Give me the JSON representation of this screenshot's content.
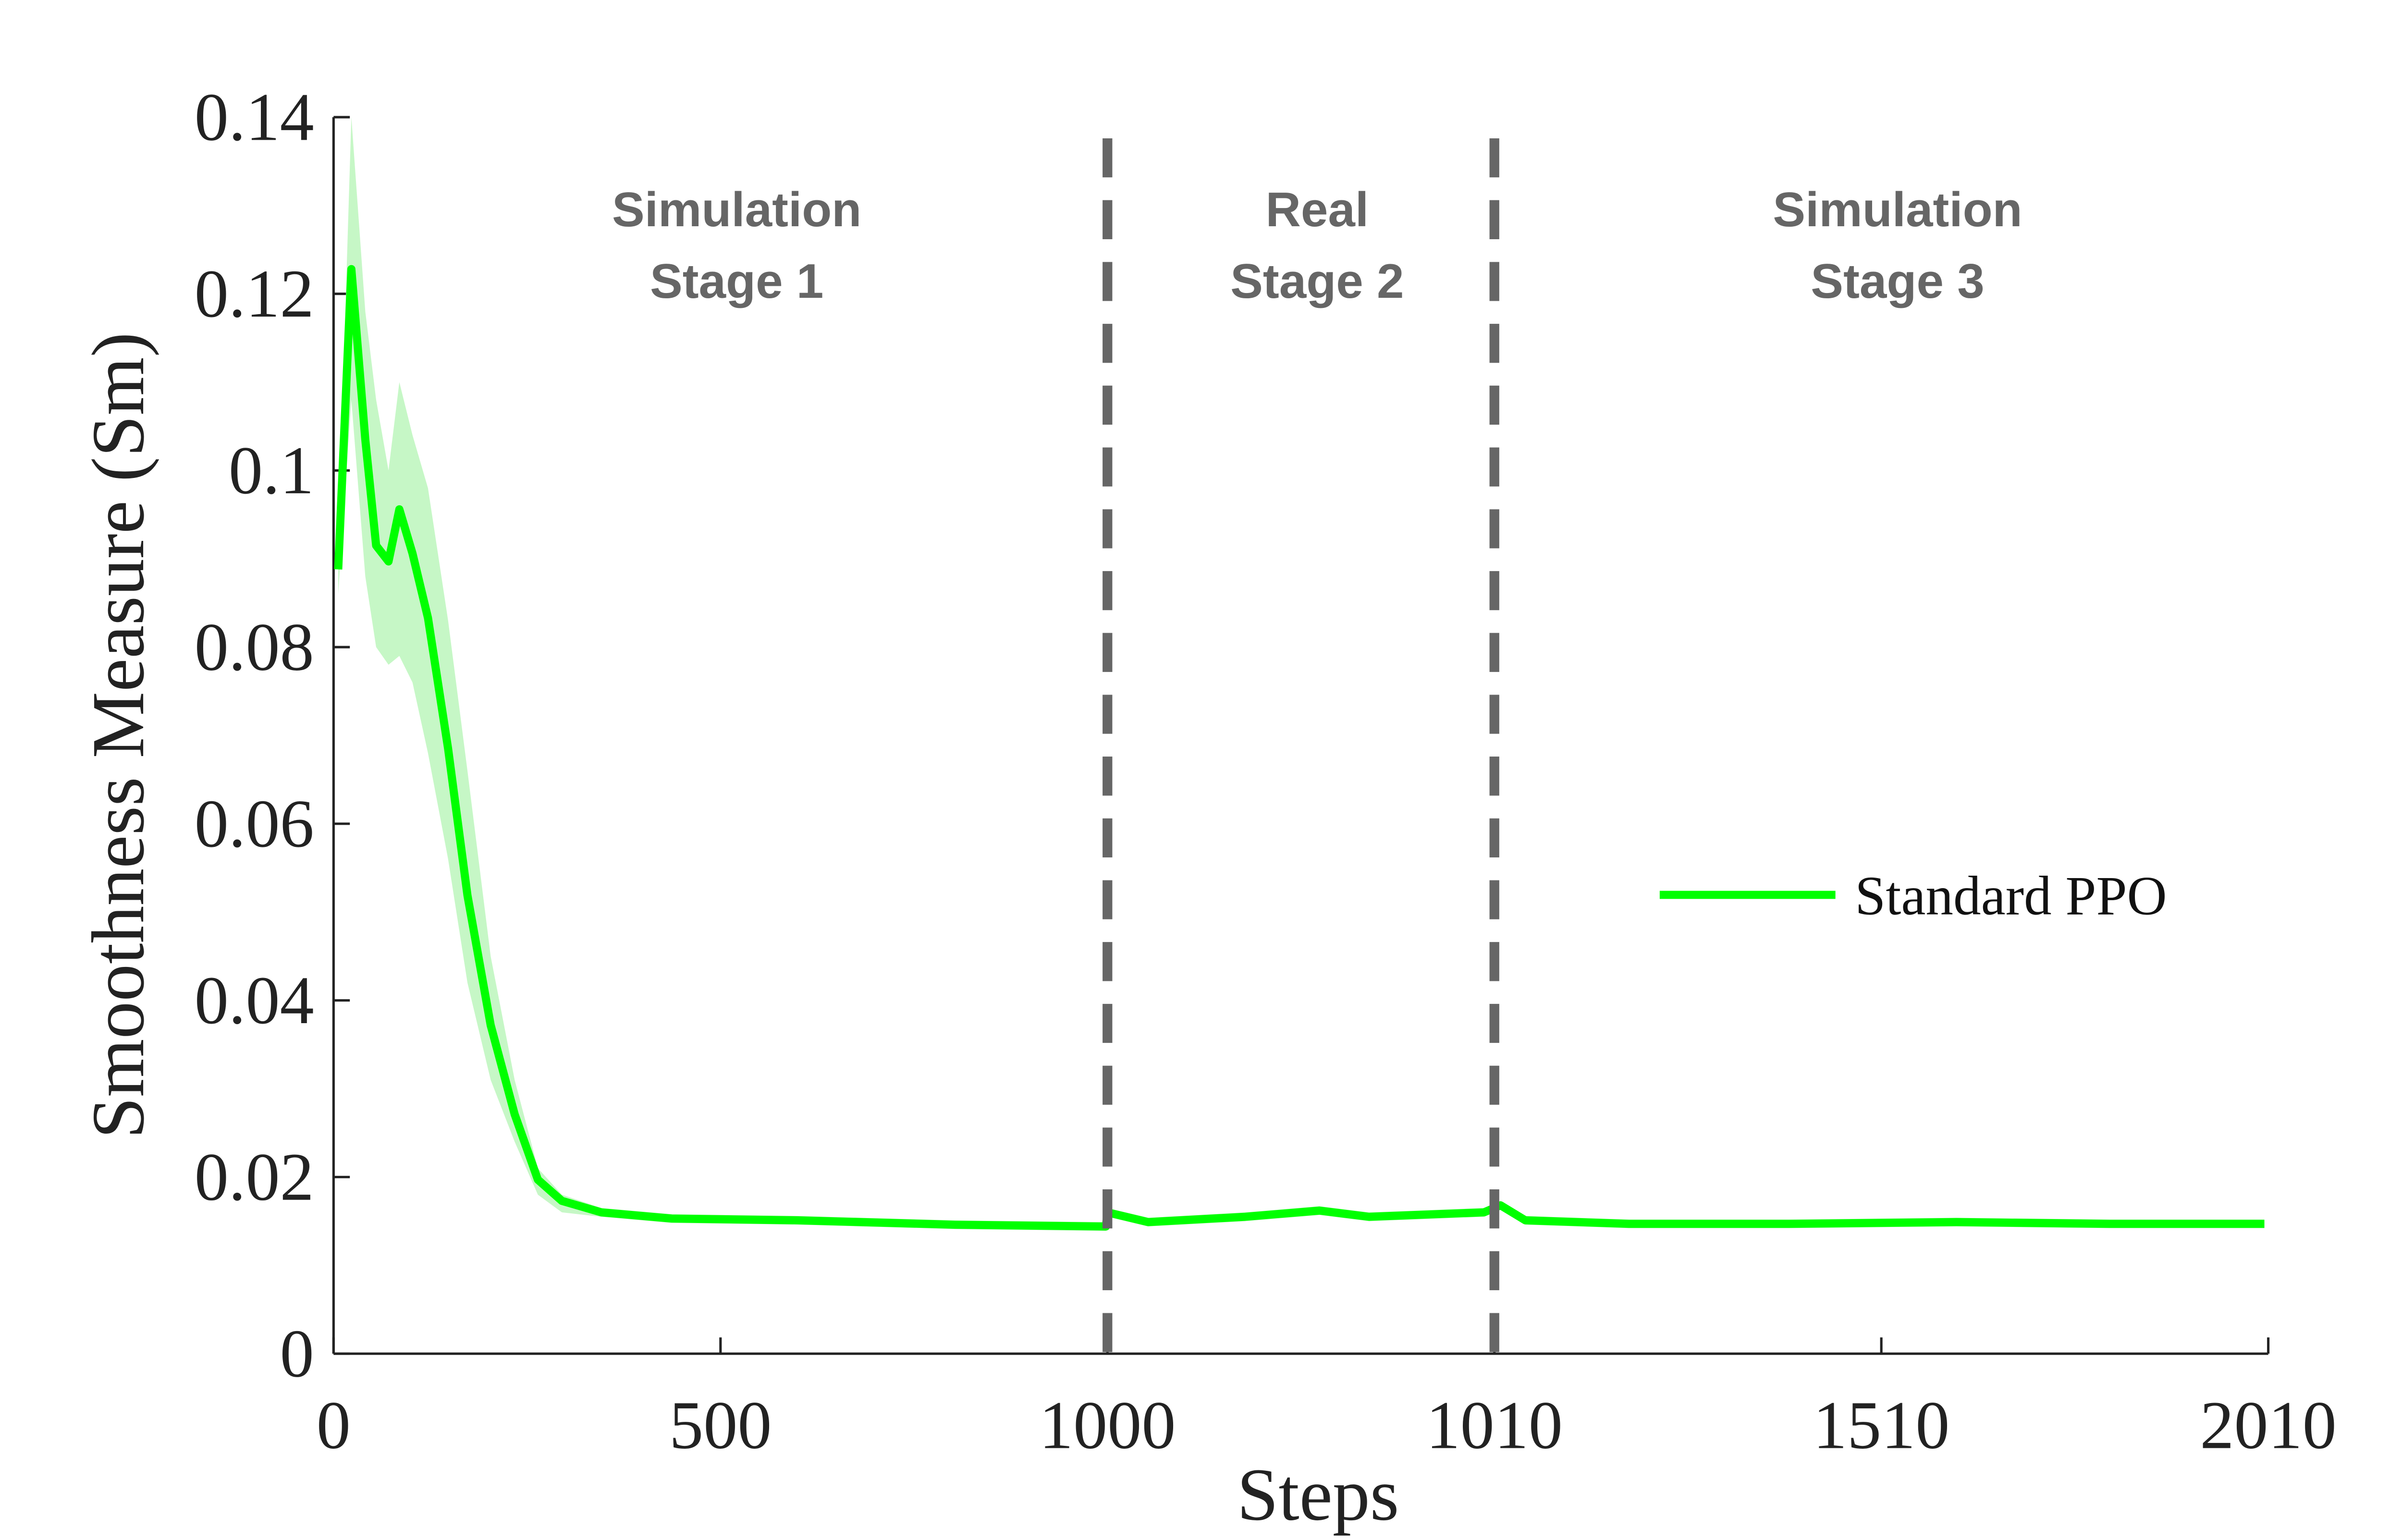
{
  "chart_data": {
    "type": "line",
    "xlabel": "Steps",
    "ylabel": "Smoothness Measure (Sm)",
    "xlim": [
      0,
      2010
    ],
    "ylim": [
      0,
      0.14
    ],
    "xticks": [
      0,
      500,
      1000,
      1010,
      1510,
      2010
    ],
    "yticks": [
      0,
      0.02,
      0.04,
      0.06,
      0.08,
      0.1,
      0.12,
      0.14
    ],
    "legend": "right",
    "dividers": [
      1000,
      1010
    ],
    "annotations": [
      [
        "Simulation",
        "Stage 1"
      ],
      [
        "Real",
        "Stage 2"
      ],
      [
        "Simulation",
        "Stage 3"
      ]
    ],
    "x": [
      6,
      23,
      41,
      55,
      71,
      85,
      102,
      122,
      148,
      173,
      203,
      234,
      264,
      295,
      346,
      437,
      600,
      803,
      998,
      1000,
      1001.05,
      1003.56,
      1005.48,
      1006.76,
      1009.73,
      1018,
      1050,
      1184,
      1391,
      1607,
      1805,
      2005
    ],
    "series": [
      {
        "name": "Standard PPO",
        "color": "#00ff00",
        "band_color": "#b8f5b8",
        "values": [
          0.0888,
          0.1228,
          0.1035,
          0.0915,
          0.0897,
          0.0956,
          0.0906,
          0.0833,
          0.0685,
          0.0519,
          0.0372,
          0.0271,
          0.0197,
          0.0173,
          0.016,
          0.0153,
          0.0151,
          0.0146,
          0.0144,
          0.016,
          0.0149,
          0.0155,
          0.0162,
          0.0155,
          0.016,
          0.0168,
          0.0151,
          0.0147,
          0.0147,
          0.0149,
          0.0147,
          0.0147
        ],
        "upper": [
          0.092,
          0.14,
          0.118,
          0.108,
          0.1,
          0.11,
          0.104,
          0.098,
          0.083,
          0.066,
          0.045,
          0.031,
          0.021,
          0.018,
          0.0165,
          0.0158,
          0.0156,
          0.0151,
          0.0149,
          0.0165,
          0.0154,
          0.016,
          0.0167,
          0.016,
          0.0165,
          0.0173,
          0.0156,
          0.0152,
          0.0152,
          0.0154,
          0.0152,
          0.0152
        ],
        "lower": [
          0.086,
          0.108,
          0.088,
          0.08,
          0.078,
          0.079,
          0.076,
          0.068,
          0.056,
          0.042,
          0.031,
          0.024,
          0.018,
          0.016,
          0.0155,
          0.0148,
          0.0146,
          0.0141,
          0.0139,
          0.0155,
          0.0144,
          0.015,
          0.0157,
          0.015,
          0.0155,
          0.0163,
          0.0146,
          0.0142,
          0.0142,
          0.0144,
          0.0142,
          0.0142
        ]
      }
    ]
  }
}
